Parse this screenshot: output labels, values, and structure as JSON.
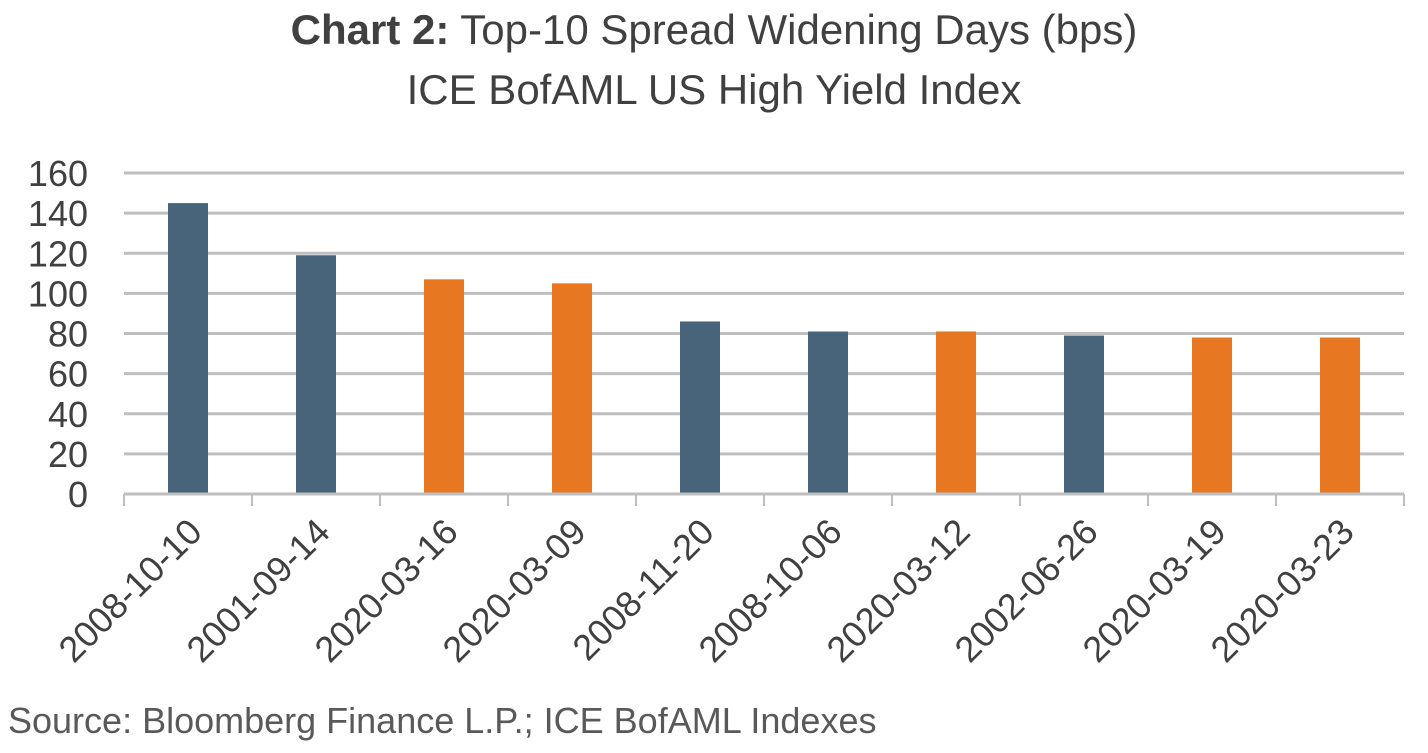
{
  "chart_data": {
    "type": "bar",
    "title_prefix": "Chart 2:",
    "title": "Top-10 Spread Widening Days (bps)",
    "subtitle": "ICE BofAML US High Yield Index",
    "categories": [
      "2008-10-10",
      "2001-09-14",
      "2020-03-16",
      "2020-03-09",
      "2008-11-20",
      "2008-10-06",
      "2020-03-12",
      "2002-06-26",
      "2020-03-19",
      "2020-03-23"
    ],
    "values": [
      145,
      119,
      107,
      105,
      86,
      81,
      81,
      79,
      78,
      78
    ],
    "bar_colors": [
      "#48647b",
      "#48647b",
      "#e87722",
      "#e87722",
      "#48647b",
      "#48647b",
      "#e87722",
      "#48647b",
      "#e87722",
      "#e87722"
    ],
    "ylim": [
      0,
      160
    ],
    "yticks": [
      0,
      20,
      40,
      60,
      80,
      100,
      120,
      140,
      160
    ],
    "grid": true,
    "legend": "none",
    "xlabel": "",
    "ylabel": ""
  },
  "source": "Source: Bloomberg Finance L.P.; ICE BofAML Indexes",
  "colors": {
    "gridline": "#bfbfbf",
    "axis_text": "#404040",
    "blue_bar": "#48647b",
    "orange_bar": "#e87722"
  }
}
